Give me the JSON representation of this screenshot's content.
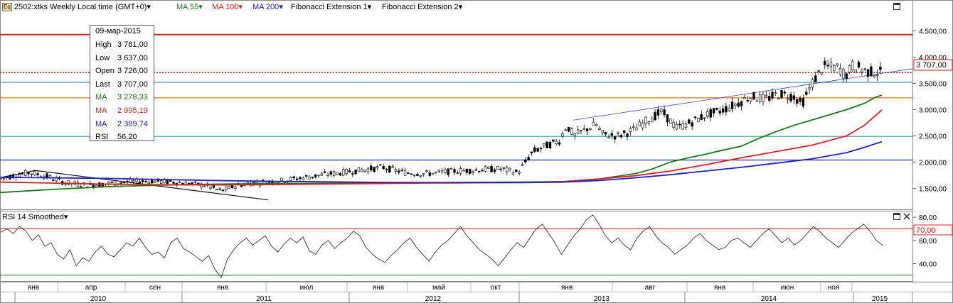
{
  "header": {
    "symbol_icon": "Eq",
    "symbol": "2502:xtks Weekly Local time (GMT+0)",
    "items": [
      {
        "label": "MA 55",
        "color": "#1a7a1a"
      },
      {
        "label": "MA 100",
        "color": "#e02020"
      },
      {
        "label": "MA 200",
        "color": "#2020c8"
      },
      {
        "label": "Fibonacci Extension 1",
        "color": "#000000"
      },
      {
        "label": "Fibonacci Extension 2",
        "color": "#000000"
      }
    ],
    "dropdown_glyph": "▾",
    "maximize_icon": "maximize-icon"
  },
  "tooltip": {
    "date": "09-мар-2015",
    "rows": [
      {
        "k": "High",
        "v": "3 781,00",
        "color": "#000000"
      },
      {
        "k": "Low",
        "v": "3 637,00",
        "color": "#000000"
      },
      {
        "k": "Open",
        "v": "3 726,00",
        "color": "#000000"
      },
      {
        "k": "Last",
        "v": "3 707,00",
        "color": "#000000"
      },
      {
        "k": "MA",
        "v": "3 278,33",
        "color": "#1a7a1a"
      },
      {
        "k": "MA",
        "v": "2 995,19",
        "color": "#e02020"
      },
      {
        "k": "MA",
        "v": "2 389,74",
        "color": "#2020c8"
      },
      {
        "k": "RSI",
        "v": "56,20",
        "color": "#000000"
      }
    ]
  },
  "rsi_panel": {
    "title": "RSI 14 Smoothed",
    "level_label": "70,00",
    "level_color": "#e02020"
  },
  "x_axis": {
    "months": [
      "янв",
      "апр",
      "сен",
      "янв",
      "июл",
      "янв",
      "май",
      "окт",
      "янв",
      "авг",
      "янв",
      "июн",
      "ноя"
    ],
    "years": [
      "2010",
      "2011",
      "2012",
      "2013",
      "2014",
      "2015"
    ]
  },
  "chart_data": [
    {
      "type": "candlestick",
      "title": "2502:xtks Weekly",
      "y_ticks": [
        "1.500,00",
        "2.000,00",
        "2.500,00",
        "3.000,00",
        "3.500,00",
        "4.000,00",
        "4.500,00"
      ],
      "ylim": [
        1100,
        4900
      ],
      "last_price_label": "3 707,00",
      "last_price": 3707,
      "horizontal_levels": [
        {
          "value": 4430,
          "color": "#d02010"
        },
        {
          "value": 3707,
          "color": "#d02010",
          "style": "dotted"
        },
        {
          "value": 3520,
          "color": "#58a8a8"
        },
        {
          "value": 3225,
          "color": "#e07020"
        },
        {
          "value": 2490,
          "color": "#58a8a8"
        },
        {
          "value": 2040,
          "color": "#2030b0"
        }
      ],
      "series": [
        {
          "name": "MA 55",
          "color": "#1a7a1a",
          "points": [
            [
              0,
              1420
            ],
            [
              30,
              1480
            ],
            [
              60,
              1530
            ],
            [
              90,
              1560
            ],
            [
              120,
              1580
            ],
            [
              150,
              1590
            ],
            [
              180,
              1595
            ],
            [
              210,
              1600
            ],
            [
              240,
              1605
            ],
            [
              270,
              1615
            ],
            [
              300,
              1620
            ],
            [
              320,
              1630
            ],
            [
              340,
              1680
            ],
            [
              360,
              1780
            ],
            [
              370,
              1870
            ],
            [
              380,
              2000
            ],
            [
              390,
              2080
            ],
            [
              400,
              2150
            ],
            [
              410,
              2230
            ],
            [
              420,
              2300
            ],
            [
              430,
              2450
            ],
            [
              440,
              2580
            ],
            [
              450,
              2700
            ],
            [
              460,
              2800
            ],
            [
              470,
              2900
            ],
            [
              480,
              3000
            ],
            [
              490,
              3120
            ],
            [
              496,
              3230
            ],
            [
              500,
              3278
            ]
          ]
        },
        {
          "name": "MA 100",
          "color": "#e02020",
          "points": [
            [
              0,
              1620
            ],
            [
              30,
              1600
            ],
            [
              60,
              1580
            ],
            [
              90,
              1570
            ],
            [
              120,
              1565
            ],
            [
              150,
              1570
            ],
            [
              180,
              1580
            ],
            [
              210,
              1590
            ],
            [
              240,
              1600
            ],
            [
              270,
              1605
            ],
            [
              300,
              1610
            ],
            [
              320,
              1630
            ],
            [
              340,
              1680
            ],
            [
              360,
              1740
            ],
            [
              380,
              1830
            ],
            [
              400,
              1950
            ],
            [
              420,
              2080
            ],
            [
              440,
              2200
            ],
            [
              460,
              2320
            ],
            [
              480,
              2500
            ],
            [
              490,
              2700
            ],
            [
              500,
              2995
            ]
          ]
        },
        {
          "name": "MA 200",
          "color": "#2020c8",
          "points": [
            [
              0,
              1710
            ],
            [
              30,
              1700
            ],
            [
              60,
              1690
            ],
            [
              90,
              1670
            ],
            [
              120,
              1650
            ],
            [
              150,
              1635
            ],
            [
              180,
              1625
            ],
            [
              210,
              1615
            ],
            [
              240,
              1610
            ],
            [
              270,
              1610
            ],
            [
              300,
              1610
            ],
            [
              320,
              1620
            ],
            [
              340,
              1650
            ],
            [
              360,
              1700
            ],
            [
              380,
              1760
            ],
            [
              400,
              1830
            ],
            [
              420,
              1900
            ],
            [
              440,
              1980
            ],
            [
              460,
              2060
            ],
            [
              480,
              2180
            ],
            [
              490,
              2280
            ],
            [
              500,
              2390
            ]
          ]
        }
      ]
    },
    {
      "type": "line",
      "title": "RSI 14 Smoothed",
      "y_ticks": [
        "40,00",
        "60,00",
        "80,00"
      ],
      "ylim": [
        25,
        85
      ],
      "levels": [
        70,
        30
      ],
      "series": [
        {
          "name": "RSI 14 Smoothed",
          "color": "#333333",
          "values": [
            67,
            70,
            66,
            72,
            68,
            60,
            65,
            55,
            58,
            48,
            44,
            52,
            38,
            45,
            42,
            50,
            55,
            48,
            46,
            52,
            58,
            55,
            62,
            54,
            48,
            50,
            45,
            58,
            62,
            53,
            50,
            46,
            42,
            47,
            35,
            28,
            44,
            52,
            58,
            62,
            56,
            60,
            64,
            55,
            50,
            57,
            62,
            58,
            63,
            51,
            48,
            56,
            60,
            53,
            58,
            62,
            68,
            64,
            54,
            48,
            44,
            41,
            47,
            52,
            58,
            62,
            54,
            48,
            42,
            50,
            56,
            60,
            66,
            72,
            64,
            58,
            52,
            48,
            44,
            38,
            45,
            52,
            58,
            54,
            62,
            70,
            74,
            66,
            58,
            48,
            56,
            64,
            70,
            78,
            82,
            74,
            64,
            58,
            62,
            56,
            52,
            62,
            68,
            72,
            64,
            58,
            54,
            48,
            52,
            56,
            62,
            66,
            60,
            56,
            52,
            54,
            60,
            62,
            58,
            54,
            60,
            66,
            70,
            64,
            58,
            62,
            56,
            60,
            66,
            72,
            68,
            62,
            58,
            54,
            60,
            66,
            70,
            74,
            68,
            60,
            56
          ]
        }
      ]
    }
  ]
}
